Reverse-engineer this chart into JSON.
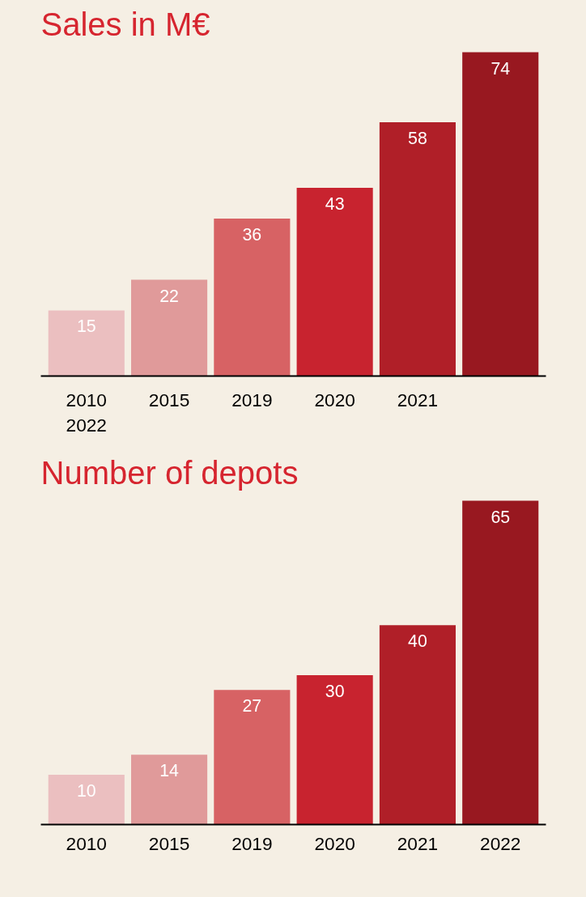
{
  "chart_data": [
    {
      "type": "bar",
      "title": "Sales in M€",
      "categories": [
        "2010\n2022",
        "2015",
        "2019",
        "2020",
        "2021",
        null
      ],
      "values": [
        15,
        22,
        36,
        43,
        58,
        74
      ],
      "colors": [
        "#ebbfc0",
        "#e09a9a",
        "#d76264",
        "#c8232f",
        "#b01f28",
        "#981820"
      ],
      "data_labels": true,
      "grid": false
    },
    {
      "type": "bar",
      "title": "Number of depots",
      "categories": [
        "2010",
        "2015",
        "2019",
        "2020",
        "2021",
        "2022"
      ],
      "values": [
        10,
        14,
        27,
        30,
        40,
        65
      ],
      "colors": [
        "#ebbfc0",
        "#e09a9a",
        "#d76264",
        "#c8232f",
        "#b01f28",
        "#981820"
      ],
      "data_labels": true,
      "grid": false
    }
  ]
}
